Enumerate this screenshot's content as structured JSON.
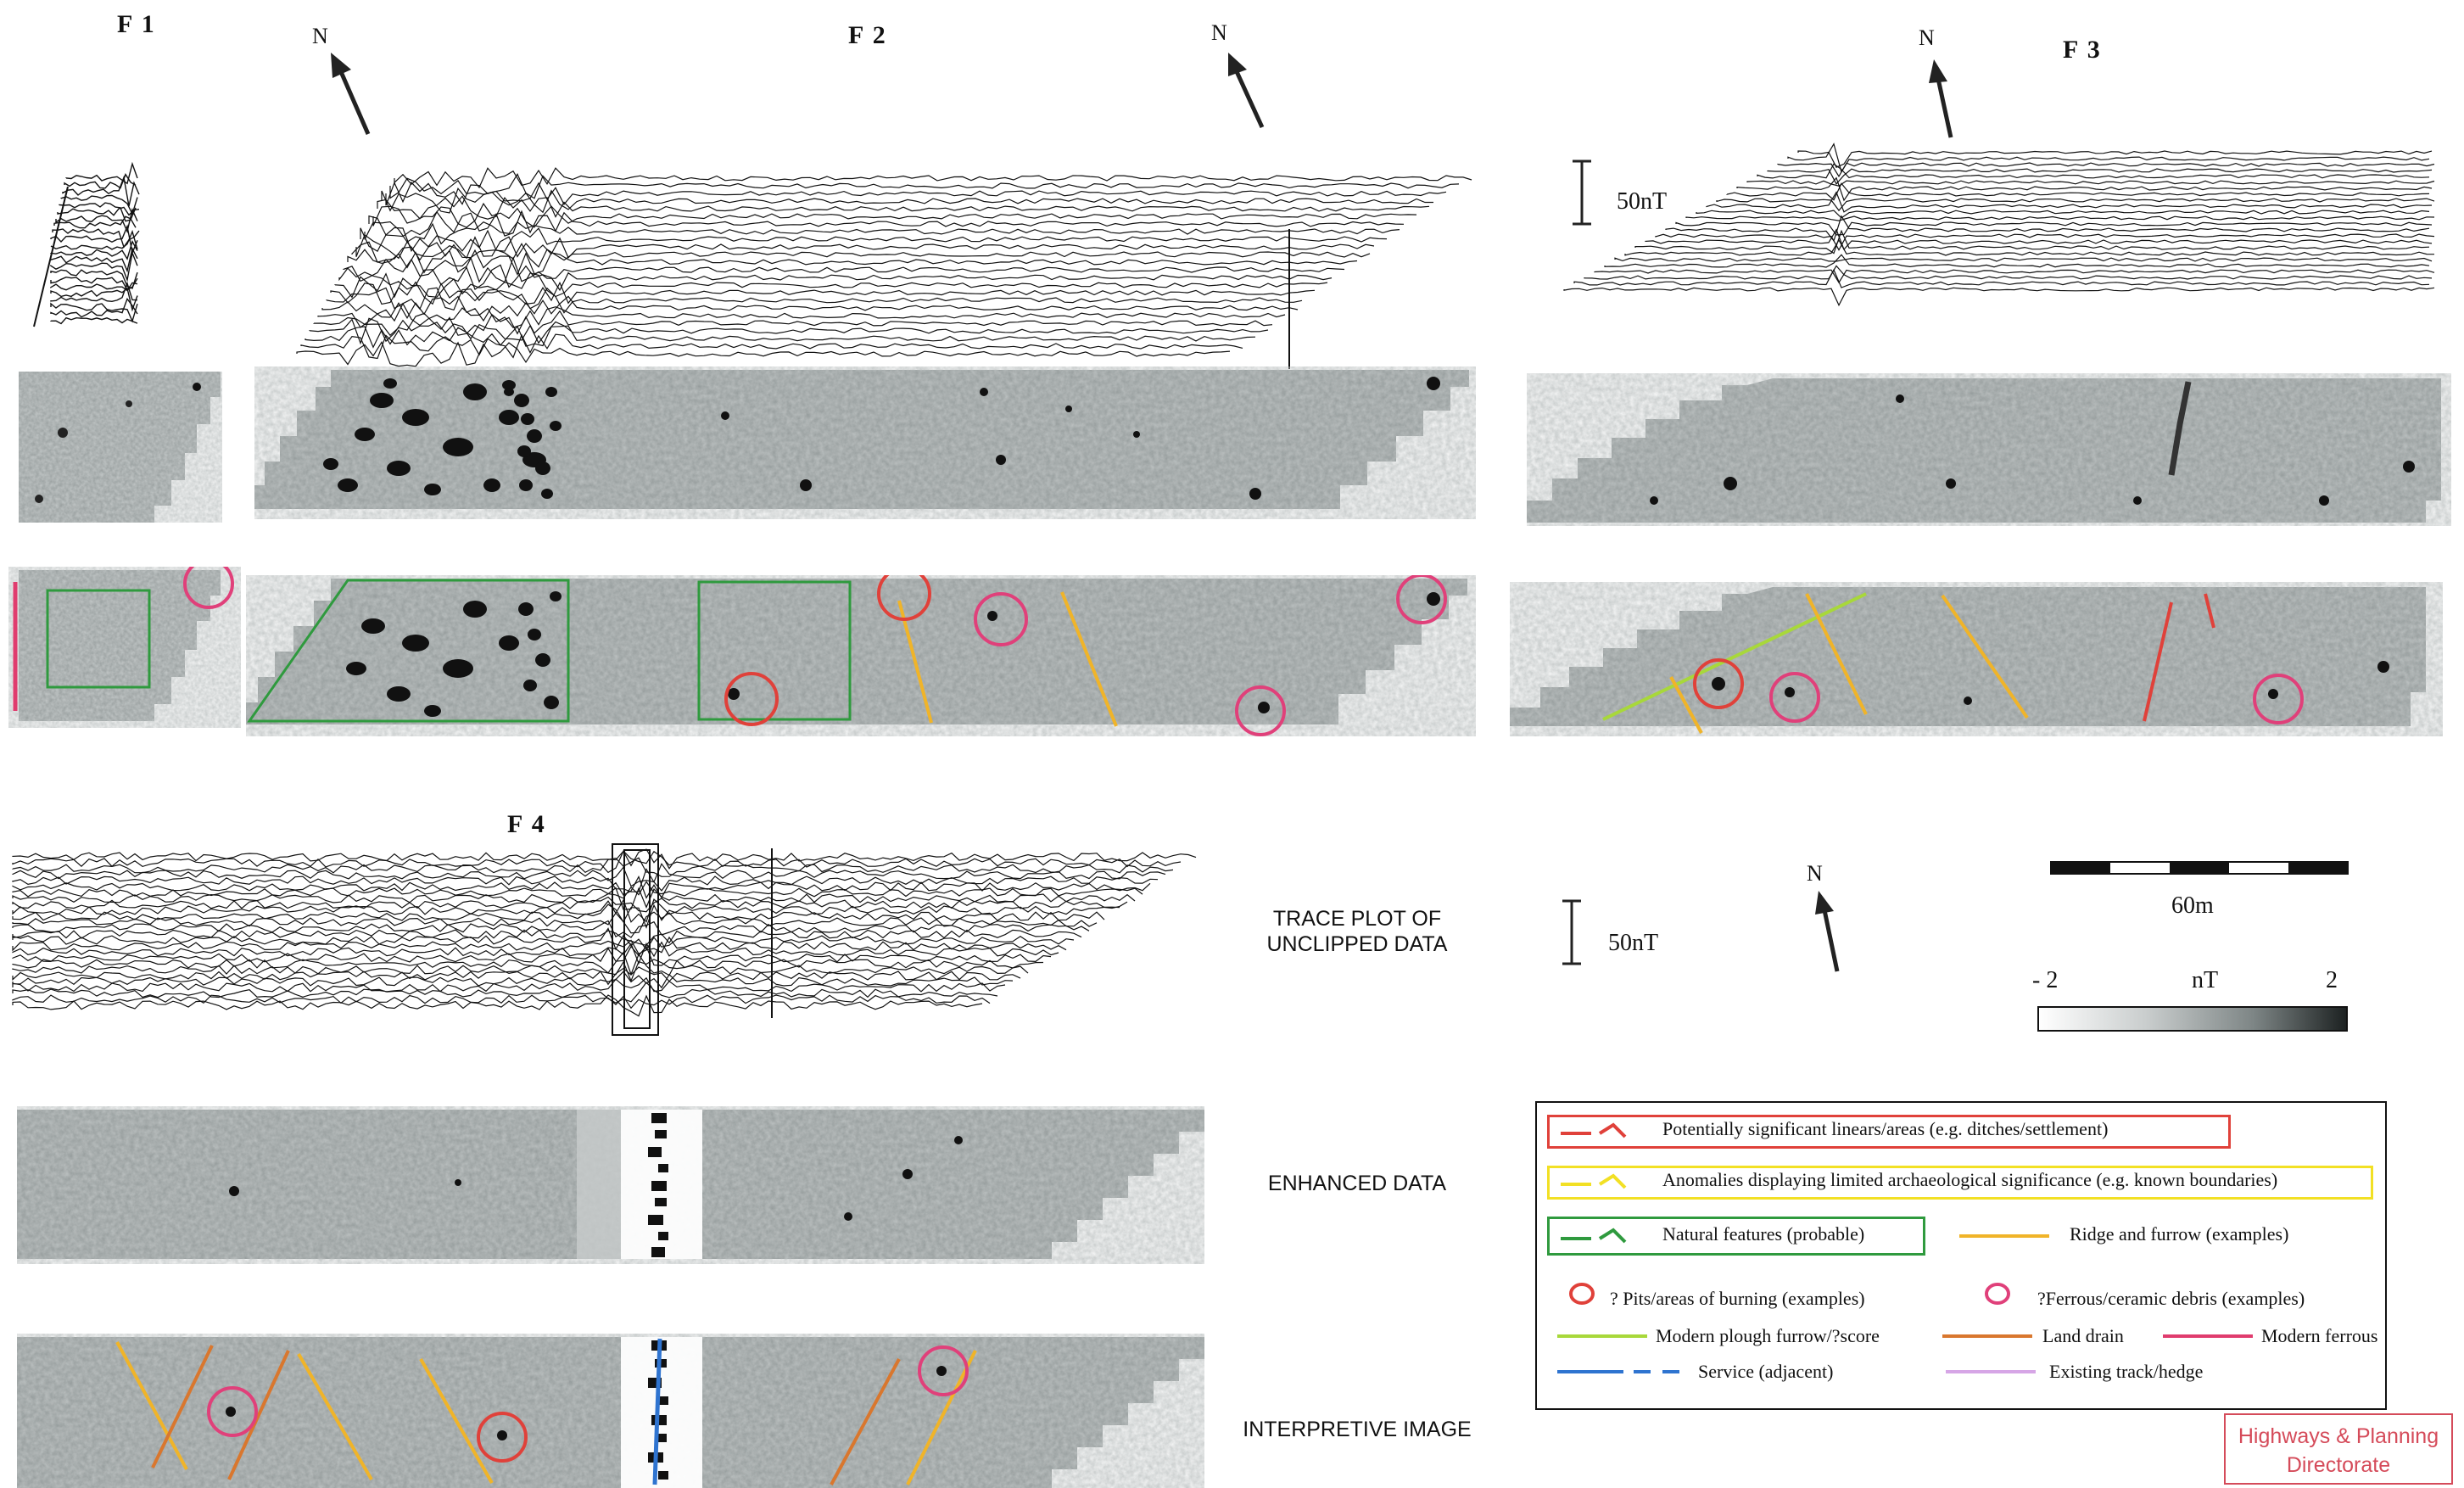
{
  "sections": {
    "f1": "F 1",
    "f2": "F 2",
    "f3": "F 3",
    "f4": "F 4"
  },
  "north": "N",
  "scale": {
    "nt_bar_label": "50nT",
    "distance_label": "60m",
    "colorbar_min": "- 2",
    "colorbar_unit": "nT",
    "colorbar_max": "2"
  },
  "rows": {
    "trace": [
      "TRACE PLOT OF",
      "UNCLIPPED DATA"
    ],
    "enhanced": "ENHANCED DATA",
    "interpretive": "INTERPRETIVE IMAGE"
  },
  "legend": {
    "significant": "Potentially significant linears/areas (e.g. ditches/settlement)",
    "limited": "Anomalies displaying limited archaeological significance (e.g. known boundaries)",
    "natural": "Natural features (probable)",
    "ridge": "Ridge and furrow (examples)",
    "pits": "? Pits/areas of burning (examples)",
    "ferrous_debris": "?Ferrous/ceramic debris (examples)",
    "plough": "Modern plough furrow/?score",
    "drain": "Land drain",
    "modern_ferrous": "Modern ferrous",
    "service": "Service (adjacent)",
    "track": "Existing track/hedge"
  },
  "stamp": [
    "Highways & Planning",
    "Directorate"
  ],
  "colors": {
    "significant": "#e0413a",
    "limited": "#f2e024",
    "natural": "#2f9a3e",
    "ridge": "#f0b429",
    "pit": "#e0413a",
    "ferrous": "#e0407a",
    "plough": "#a8d83a",
    "drain": "#d9772e",
    "modern_ferrous": "#e03c6e",
    "service": "#2f74d0",
    "track": "#d6a6e6"
  }
}
